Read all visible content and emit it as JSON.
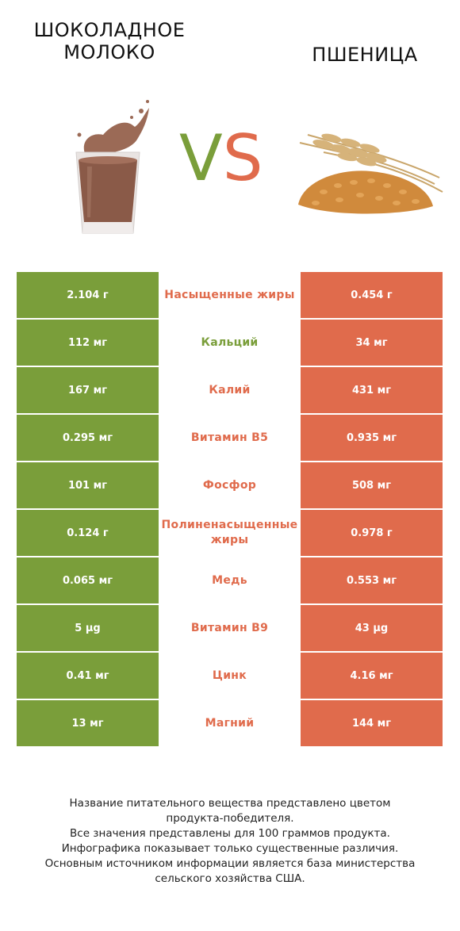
{
  "header": {
    "left_title": "ШОКОЛАДНОЕ МОЛОКО",
    "right_title": "ПШЕНИЦА",
    "vs_v": "V",
    "vs_s": "S"
  },
  "colors": {
    "left_winner": "#7a9e3a",
    "right_winner": "#e06b4c"
  },
  "rows": [
    {
      "left": "2.104 г",
      "name": "Насыщенные жиры",
      "right": "0.454 г",
      "winner": "right"
    },
    {
      "left": "112 мг",
      "name": "Кальций",
      "right": "34 мг",
      "winner": "left"
    },
    {
      "left": "167 мг",
      "name": "Калий",
      "right": "431 мг",
      "winner": "right"
    },
    {
      "left": "0.295 мг",
      "name": "Витамин B5",
      "right": "0.935 мг",
      "winner": "right"
    },
    {
      "left": "101 мг",
      "name": "Фосфор",
      "right": "508 мг",
      "winner": "right"
    },
    {
      "left": "0.124 г",
      "name": "Полиненасыщенные жиры",
      "right": "0.978 г",
      "winner": "right"
    },
    {
      "left": "0.065 мг",
      "name": "Медь",
      "right": "0.553 мг",
      "winner": "right"
    },
    {
      "left": "5 µg",
      "name": "Витамин B9",
      "right": "43 µg",
      "winner": "right"
    },
    {
      "left": "0.41 мг",
      "name": "Цинк",
      "right": "4.16 мг",
      "winner": "right"
    },
    {
      "left": "13 мг",
      "name": "Магний",
      "right": "144 мг",
      "winner": "right"
    }
  ],
  "footnote": {
    "line1": "Название питательного вещества представлено цветом",
    "line2": "продукта-победителя.",
    "line3": "Все значения представлены для 100 граммов продукта.",
    "line4": "Инфографика показывает только существенные различия.",
    "line5": "Основным источником информации является база министерства",
    "line6": "сельского хозяйства США."
  }
}
